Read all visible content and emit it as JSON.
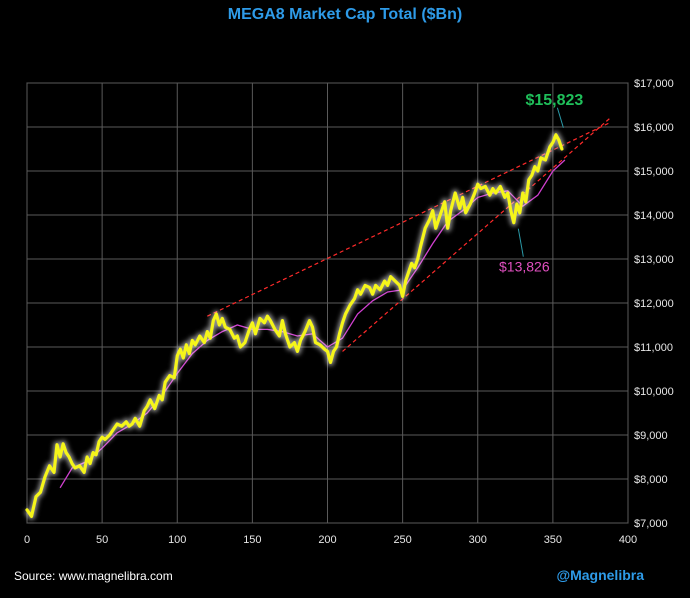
{
  "page": {
    "source": "Source: www.magnelibra.com",
    "handle": "@Magnelibra"
  },
  "chart_data": {
    "type": "line",
    "title": "MEGA8 Market Cap Total ($Bn)",
    "xlabel": "",
    "ylabel": "",
    "xlim": [
      0,
      400
    ],
    "ylim": [
      7000,
      17000
    ],
    "x_ticks": [
      0,
      50,
      100,
      150,
      200,
      250,
      300,
      350,
      400
    ],
    "y_ticks": [
      7000,
      8000,
      9000,
      10000,
      11000,
      12000,
      13000,
      14000,
      15000,
      16000,
      17000
    ],
    "y_tick_labels": [
      "$7,000",
      "$8,000",
      "$9,000",
      "$10,000",
      "$11,000",
      "$12,000",
      "$13,000",
      "$14,000",
      "$15,000",
      "$16,000",
      "$17,000"
    ],
    "grid": true,
    "colors": {
      "series": "#f5f51a",
      "glow": "#ffffff",
      "ma": "#d040d0",
      "trend": "#ff2a2a",
      "high": "#1fbf5a",
      "low": "#e050c0",
      "connector": "#2a9aa8",
      "title": "#2e9be8",
      "grid": "#5a5a5a"
    },
    "series": [
      {
        "name": "MEGA8 Market Cap",
        "x": [
          0,
          3,
          6,
          9,
          12,
          15,
          18,
          20,
          22,
          24,
          26,
          28,
          30,
          32,
          35,
          38,
          40,
          42,
          44,
          46,
          48,
          50,
          52,
          55,
          58,
          60,
          63,
          66,
          68,
          70,
          72,
          75,
          78,
          80,
          82,
          85,
          88,
          90,
          92,
          95,
          98,
          100,
          102,
          104,
          106,
          108,
          110,
          112,
          115,
          118,
          120,
          122,
          124,
          126,
          128,
          130,
          132,
          135,
          138,
          140,
          142,
          145,
          148,
          150,
          152,
          155,
          158,
          160,
          162,
          165,
          168,
          170,
          172,
          175,
          178,
          180,
          182,
          185,
          188,
          190,
          192,
          195,
          198,
          200,
          202,
          204,
          206,
          208,
          210,
          212,
          215,
          218,
          220,
          222,
          225,
          228,
          230,
          232,
          235,
          238,
          240,
          242,
          245,
          248,
          250,
          252,
          254,
          256,
          258,
          260,
          262,
          265,
          268,
          270,
          272,
          275,
          278,
          280,
          282,
          285,
          288,
          290,
          292,
          295,
          298,
          300,
          302,
          305,
          308,
          310,
          312,
          315,
          318,
          320,
          322,
          324,
          326,
          328,
          330,
          332,
          334,
          336,
          338,
          340,
          342,
          345,
          348,
          350,
          352,
          354,
          356
        ],
        "y": [
          7300,
          7150,
          7600,
          7700,
          8050,
          8300,
          8150,
          8780,
          8500,
          8800,
          8600,
          8500,
          8350,
          8250,
          8300,
          8150,
          8500,
          8350,
          8600,
          8550,
          8850,
          8950,
          8900,
          9000,
          9150,
          9250,
          9200,
          9300,
          9200,
          9250,
          9380,
          9200,
          9550,
          9650,
          9800,
          9600,
          9900,
          9800,
          10200,
          10350,
          10300,
          10800,
          10950,
          10750,
          11050,
          10850,
          11150,
          11050,
          11250,
          11100,
          11350,
          11200,
          11600,
          11750,
          11500,
          11650,
          11450,
          11400,
          11200,
          11250,
          11000,
          11100,
          11400,
          11550,
          11300,
          11650,
          11550,
          11700,
          11600,
          11400,
          11250,
          11600,
          11300,
          11000,
          11100,
          10900,
          11150,
          11350,
          11600,
          11450,
          11100,
          11050,
          10950,
          10900,
          10650,
          10900,
          11000,
          11300,
          11550,
          11750,
          11950,
          12100,
          12300,
          12200,
          12400,
          12350,
          12200,
          12400,
          12300,
          12500,
          12400,
          12600,
          12500,
          12400,
          12150,
          12500,
          12700,
          12900,
          12800,
          13000,
          13300,
          13700,
          13900,
          14100,
          13700,
          14000,
          14300,
          13700,
          14100,
          14500,
          14150,
          14400,
          14050,
          14250,
          14500,
          14700,
          14600,
          14650,
          14450,
          14600,
          14500,
          14650,
          14400,
          14500,
          14100,
          13826,
          14250,
          14050,
          14500,
          14300,
          14800,
          14900,
          15100,
          15000,
          15300,
          15250,
          15550,
          15650,
          15823,
          15700,
          15500
        ]
      },
      {
        "name": "Moving Average",
        "x": [
          22,
          30,
          40,
          50,
          60,
          70,
          80,
          90,
          100,
          110,
          120,
          130,
          140,
          150,
          160,
          170,
          180,
          190,
          200,
          210,
          220,
          230,
          240,
          250,
          260,
          270,
          280,
          290,
          300,
          310,
          320,
          330,
          340,
          350,
          358
        ],
        "y": [
          7800,
          8250,
          8400,
          8700,
          9050,
          9250,
          9500,
          9900,
          10400,
          10850,
          11150,
          11350,
          11500,
          11400,
          11400,
          11350,
          11250,
          11300,
          11000,
          11200,
          11750,
          12050,
          12250,
          12300,
          12800,
          13350,
          13850,
          14100,
          14400,
          14500,
          14550,
          14200,
          14450,
          15000,
          15250
        ]
      }
    ],
    "trendlines": [
      {
        "name": "Upper Trendline",
        "x": [
          120,
          388
        ],
        "y": [
          11700,
          16100
        ]
      },
      {
        "name": "Lower Trendline",
        "x": [
          210,
          388
        ],
        "y": [
          10900,
          16200
        ]
      }
    ],
    "annotations": [
      {
        "label": "$15,823",
        "x": 353,
        "y": 15823,
        "kind": "high"
      },
      {
        "label": "$13,826",
        "x": 327,
        "y": 13826,
        "kind": "low"
      }
    ]
  }
}
